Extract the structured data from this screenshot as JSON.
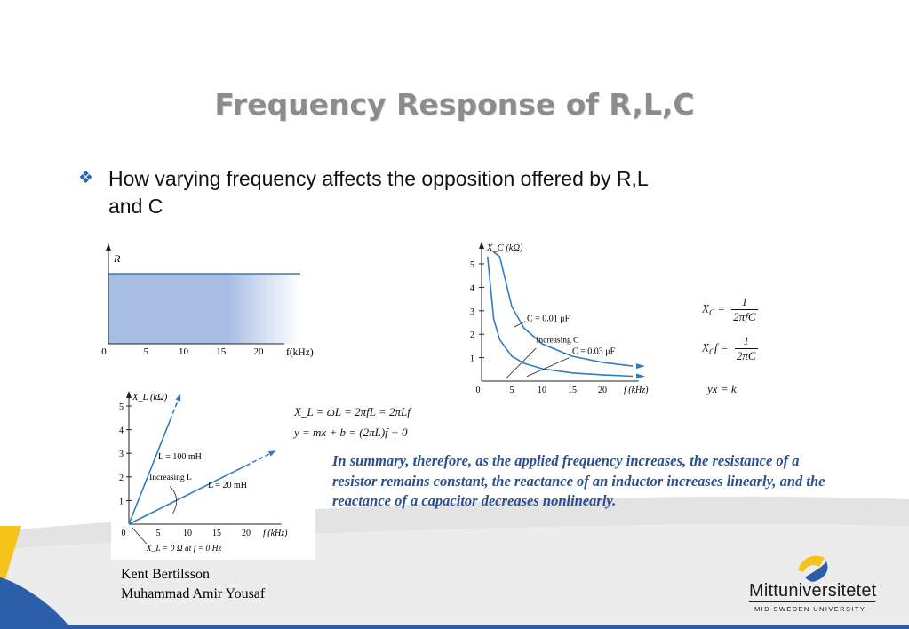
{
  "slide": {
    "title": "Frequency Response of R,L,C",
    "bullet": "How varying frequency affects the opposition offered by R,L and C",
    "summary": "In summary, therefore, as the applied frequency increases, the resistance of a resistor remains constant, the reactance of an inductor increases linearly, and the reactance of a capacitor decreases nonlinearly.",
    "authors": [
      "Kent Bertilsson",
      "Muhammad Amir Yousaf"
    ],
    "logo_name": "Mittuniversitetet",
    "logo_sub": "MID SWEDEN UNIVERSITY"
  },
  "formulas": {
    "xc1_lhs": "X",
    "xc1_sub": "C",
    "xc1_eq": " =",
    "xc1_num": "1",
    "xc1_den": "2πfC",
    "xc2_lhs": "X",
    "xc2_sub": "C",
    "xc2_mid": "f =",
    "xc2_num": "1",
    "xc2_den": "2πC",
    "xc3": "yx = k",
    "xl1": "X_L = ωL = 2πfL = 2πLf",
    "xl2": "y = mx + b = (2πL)f + 0"
  },
  "colors": {
    "accent_blue": "#2b63b7",
    "curve_blue": "#2f7cc4",
    "fill_blue": "#a8bde3",
    "summary_blue": "#2b4f8f",
    "title_gray": "#8c8c8c"
  },
  "chart_data": [
    {
      "type": "area",
      "ylabel": "R",
      "xlabel": "f(kHz)",
      "x_ticks": [
        "0",
        "5",
        "10",
        "15",
        "20"
      ],
      "series": [
        {
          "name": "",
          "x": [
            0,
            25
          ],
          "values": [
            1,
            1
          ]
        }
      ]
    },
    {
      "type": "line",
      "ylabel": "X_C (kΩ)",
      "xlabel": "f (kHz)",
      "x_ticks": [
        "0",
        "5",
        "10",
        "15",
        "20"
      ],
      "y_ticks": [
        "1",
        "2",
        "3",
        "4",
        "5"
      ],
      "ylim": [
        0,
        5.5
      ],
      "xlim": [
        0,
        25
      ],
      "annotations": [
        "C = 0.01 μF",
        "Increasing C",
        "C = 0.03 μF"
      ],
      "series": [
        {
          "name": "C = 0.01 μF",
          "x": [
            2,
            3,
            5,
            7,
            10,
            15,
            20,
            25
          ],
          "values": [
            7.96,
            5.31,
            3.18,
            2.27,
            1.59,
            1.06,
            0.8,
            0.64
          ]
        },
        {
          "name": "C = 0.03 μF",
          "x": [
            1,
            2,
            3,
            5,
            7,
            10,
            15,
            20,
            25
          ],
          "values": [
            5.31,
            2.65,
            1.77,
            1.06,
            0.76,
            0.53,
            0.35,
            0.27,
            0.21
          ]
        }
      ]
    },
    {
      "type": "line",
      "ylabel": "X_L (kΩ)",
      "xlabel": "f (kHz)",
      "x_ticks": [
        "0",
        "5",
        "10",
        "15",
        "20"
      ],
      "y_ticks": [
        "1",
        "2",
        "3",
        "4",
        "5"
      ],
      "ylim": [
        0,
        5.5
      ],
      "xlim": [
        0,
        25
      ],
      "annotations": [
        "L = 100 mH",
        "Increasing L",
        "L = 20 mH",
        "X_L = 0 Ω at f = 0 Hz"
      ],
      "series": [
        {
          "name": "L = 100 mH",
          "x": [
            0,
            8.8
          ],
          "values": [
            0,
            5.5
          ]
        },
        {
          "name": "L = 20 mH",
          "x": [
            0,
            25
          ],
          "values": [
            0,
            3.1
          ]
        }
      ]
    }
  ]
}
